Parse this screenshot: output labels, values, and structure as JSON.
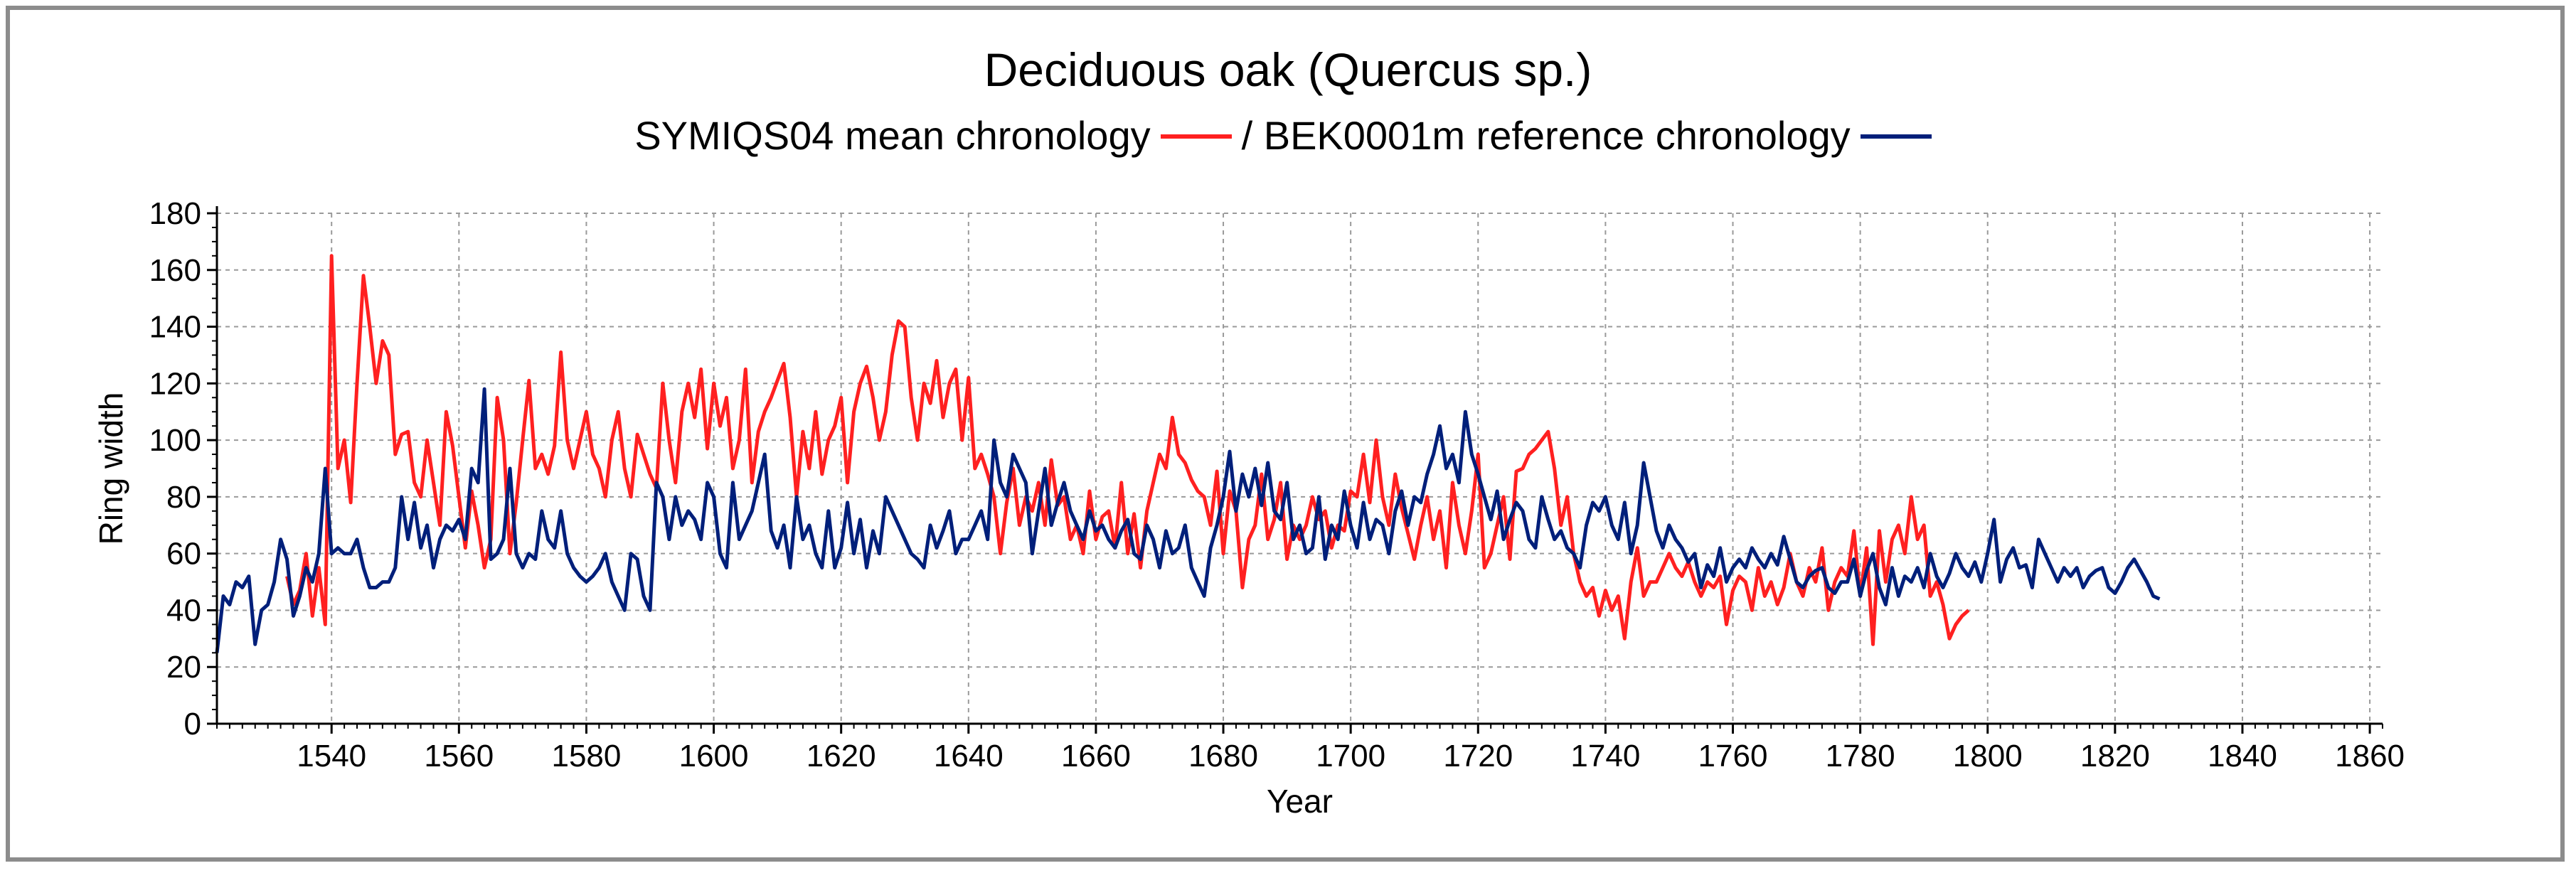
{
  "chart_data": {
    "type": "line",
    "title": "Deciduous oak (Quercus sp.)",
    "subtitle_parts": [
      "SYMIQS04 mean chronology",
      "/ BEK0001m reference chronology"
    ],
    "xlabel": "Year",
    "ylabel": "Ring width",
    "xlim": [
      1522,
      1862
    ],
    "ylim": [
      0,
      180
    ],
    "x_ticks": [
      1540,
      1560,
      1580,
      1600,
      1620,
      1640,
      1660,
      1680,
      1700,
      1720,
      1740,
      1760,
      1780,
      1800,
      1820,
      1840,
      1860
    ],
    "y_ticks": [
      0,
      20,
      40,
      60,
      80,
      100,
      120,
      140,
      160,
      180
    ],
    "grid": true,
    "colors": {
      "mean": "#ff2020",
      "reference": "#001f7a",
      "frame": "#8c8c8c"
    },
    "series": [
      {
        "name": "SYMIQS04 mean chronology",
        "color": "#ff2020",
        "x_start": 1533,
        "values": [
          52,
          42,
          47,
          60,
          38,
          55,
          35,
          165,
          90,
          100,
          78,
          120,
          158,
          140,
          120,
          135,
          130,
          95,
          102,
          103,
          85,
          80,
          100,
          85,
          70,
          110,
          98,
          80,
          62,
          82,
          70,
          55,
          65,
          115,
          100,
          60,
          78,
          100,
          121,
          90,
          95,
          88,
          98,
          131,
          100,
          90,
          100,
          110,
          95,
          90,
          80,
          100,
          110,
          90,
          80,
          102,
          95,
          88,
          83,
          120,
          100,
          85,
          110,
          120,
          108,
          125,
          97,
          120,
          105,
          115,
          90,
          100,
          125,
          85,
          103,
          110,
          115,
          121,
          127,
          108,
          80,
          103,
          90,
          110,
          88,
          100,
          105,
          115,
          85,
          110,
          120,
          126,
          115,
          100,
          110,
          130,
          142,
          140,
          115,
          100,
          120,
          113,
          128,
          108,
          120,
          125,
          100,
          122,
          90,
          95,
          88,
          80,
          60,
          78,
          90,
          70,
          80,
          75,
          85,
          70,
          93,
          77,
          80,
          65,
          70,
          60,
          82,
          65,
          73,
          75,
          62,
          85,
          60,
          74,
          55,
          75,
          85,
          95,
          90,
          108,
          95,
          92,
          86,
          82,
          80,
          70,
          89,
          60,
          82,
          75,
          48,
          65,
          70,
          88,
          65,
          72,
          85,
          58,
          70,
          65,
          70,
          80,
          72,
          75,
          62,
          70,
          68,
          82,
          80,
          95,
          78,
          100,
          80,
          70,
          88,
          76,
          67,
          58,
          70,
          80,
          65,
          75,
          55,
          85,
          70,
          60,
          75,
          95,
          55,
          60,
          70,
          80,
          58,
          89,
          90,
          95,
          97,
          100,
          103,
          90,
          70,
          80,
          60,
          50,
          45,
          48,
          38,
          47,
          40,
          45,
          30,
          50,
          62,
          45,
          50,
          50,
          55,
          60,
          55,
          52,
          57,
          50,
          45,
          50,
          48,
          52,
          35,
          47,
          52,
          50,
          40,
          55,
          45,
          50,
          42,
          48,
          60,
          50,
          45,
          55,
          50,
          62,
          40,
          50,
          55,
          52,
          68,
          45,
          62,
          28,
          68,
          50,
          65,
          70,
          60,
          80,
          65,
          70,
          45,
          50,
          42,
          30,
          35,
          38,
          40
        ]
      },
      {
        "name": "BEK0001m reference chronology",
        "color": "#001f7a",
        "x_start": 1522,
        "values": [
          25,
          45,
          42,
          50,
          48,
          52,
          28,
          40,
          42,
          50,
          65,
          58,
          38,
          45,
          55,
          50,
          60,
          90,
          60,
          62,
          60,
          60,
          65,
          55,
          48,
          48,
          50,
          50,
          55,
          80,
          65,
          78,
          62,
          70,
          55,
          65,
          70,
          68,
          72,
          65,
          90,
          85,
          118,
          58,
          60,
          65,
          90,
          60,
          55,
          60,
          58,
          75,
          65,
          62,
          75,
          60,
          55,
          52,
          50,
          52,
          55,
          60,
          50,
          45,
          40,
          60,
          58,
          45,
          40,
          85,
          80,
          65,
          80,
          70,
          75,
          72,
          65,
          85,
          80,
          60,
          55,
          85,
          65,
          70,
          75,
          85,
          95,
          68,
          62,
          70,
          55,
          80,
          65,
          70,
          60,
          55,
          75,
          55,
          62,
          78,
          60,
          72,
          55,
          68,
          60,
          80,
          75,
          70,
          65,
          60,
          58,
          55,
          70,
          62,
          68,
          75,
          60,
          65,
          65,
          70,
          75,
          65,
          100,
          85,
          80,
          95,
          90,
          85,
          60,
          75,
          90,
          70,
          78,
          85,
          75,
          70,
          65,
          75,
          68,
          70,
          65,
          62,
          68,
          72,
          60,
          58,
          70,
          65,
          55,
          68,
          60,
          62,
          70,
          55,
          50,
          45,
          62,
          70,
          80,
          96,
          75,
          88,
          80,
          90,
          77,
          92,
          75,
          72,
          85,
          65,
          70,
          60,
          62,
          80,
          58,
          70,
          65,
          82,
          70,
          62,
          78,
          65,
          72,
          70,
          60,
          75,
          82,
          70,
          80,
          78,
          88,
          95,
          105,
          90,
          95,
          85,
          110,
          95,
          88,
          80,
          72,
          82,
          65,
          72,
          78,
          75,
          65,
          62,
          80,
          72,
          65,
          68,
          62,
          60,
          55,
          70,
          78,
          75,
          80,
          70,
          65,
          78,
          60,
          70,
          92,
          80,
          68,
          62,
          70,
          65,
          62,
          57,
          60,
          48,
          56,
          52,
          62,
          50,
          55,
          58,
          55,
          62,
          58,
          55,
          60,
          56,
          66,
          58,
          50,
          48,
          52,
          54,
          55,
          48,
          46,
          50,
          50,
          58,
          45,
          54,
          60,
          48,
          42,
          55,
          45,
          52,
          50,
          55,
          48,
          60,
          52,
          48,
          53,
          60,
          55,
          52,
          57,
          50,
          60,
          72,
          50,
          58,
          62,
          55,
          56,
          48,
          65,
          60,
          55,
          50,
          55,
          52,
          55,
          48,
          52,
          54,
          55,
          48,
          46,
          50,
          55,
          58,
          54,
          50,
          45,
          44
        ]
      }
    ]
  }
}
